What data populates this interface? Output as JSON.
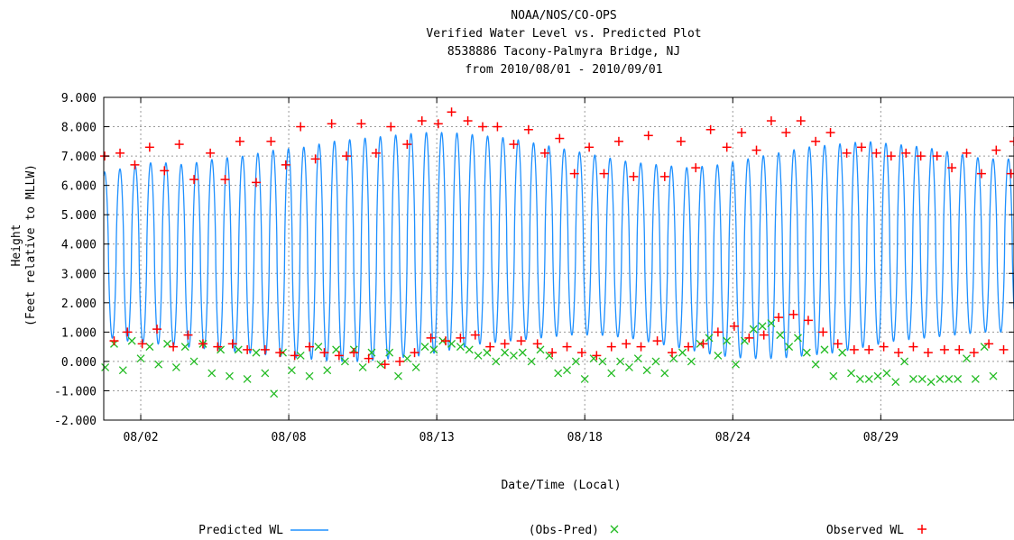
{
  "chart_data": {
    "type": "line",
    "title_lines": [
      "NOAA/NOS/CO-OPS",
      "Verified  Water Level vs. Predicted Plot",
      "8538886 Tacony-Palmyra Bridge, NJ",
      "from 2010/08/01 - 2010/09/01"
    ],
    "ylabel_lines": [
      "Height",
      "(Feet relative to MLLW)"
    ],
    "xlabel": "Date/Time (Local)",
    "ylim": [
      -2,
      9
    ],
    "y_ticks": [
      "9.000",
      "8.000",
      "7.000",
      "6.000",
      "5.000",
      "4.000",
      "3.000",
      "2.000",
      "1.000",
      "0.000",
      "-1.000",
      "-2.000"
    ],
    "y_tick_values": [
      9,
      8,
      7,
      6,
      5,
      4,
      3,
      2,
      1,
      0,
      -1,
      -2
    ],
    "x_range_days": [
      0.25,
      31.0
    ],
    "x_ticks": [
      "08/02",
      "08/08",
      "08/13",
      "08/18",
      "08/24",
      "08/29"
    ],
    "x_tick_days": [
      1.5,
      6.5,
      11.5,
      16.5,
      21.5,
      26.5
    ],
    "grid": true,
    "series": [
      {
        "name": "Predicted WL",
        "style": "line",
        "color": "#1e90ff",
        "tidal_period_hours": 12.42,
        "high_values": [
          6.4,
          6.6,
          6.8,
          6.7,
          6.9,
          7.0,
          7.2,
          7.3,
          7.5,
          7.6,
          7.7,
          7.8,
          7.8,
          7.7,
          7.6,
          7.4,
          7.2,
          7.0,
          6.8,
          6.7,
          6.6,
          6.7,
          6.9,
          7.1,
          7.3,
          7.4,
          7.5,
          7.4,
          7.3,
          7.1,
          6.9
        ],
        "low_values": [
          0.9,
          0.7,
          0.6,
          0.5,
          0.4,
          0.3,
          0.2,
          0.1,
          0.0,
          0.0,
          0.1,
          0.2,
          0.4,
          0.6,
          0.7,
          0.8,
          0.9,
          0.9,
          0.8,
          0.6,
          0.4,
          0.2,
          0.1,
          0.1,
          0.2,
          0.3,
          0.5,
          0.7,
          0.8,
          0.9,
          1.0
        ]
      },
      {
        "name": "(Obs-Pred)",
        "style": "marker-x",
        "color": "#22bb22",
        "points": [
          [
            0.3,
            -0.2
          ],
          [
            0.6,
            0.6
          ],
          [
            0.9,
            -0.3
          ],
          [
            1.2,
            0.7
          ],
          [
            1.5,
            0.1
          ],
          [
            1.8,
            0.5
          ],
          [
            2.1,
            -0.1
          ],
          [
            2.4,
            0.6
          ],
          [
            2.7,
            -0.2
          ],
          [
            3.0,
            0.5
          ],
          [
            3.3,
            0.0
          ],
          [
            3.6,
            0.6
          ],
          [
            3.9,
            -0.4
          ],
          [
            4.2,
            0.4
          ],
          [
            4.5,
            -0.5
          ],
          [
            4.8,
            0.4
          ],
          [
            5.1,
            -0.6
          ],
          [
            5.4,
            0.3
          ],
          [
            5.7,
            -0.4
          ],
          [
            6.0,
            -1.1
          ],
          [
            6.3,
            0.3
          ],
          [
            6.6,
            -0.3
          ],
          [
            6.9,
            0.2
          ],
          [
            7.2,
            -0.5
          ],
          [
            7.5,
            0.5
          ],
          [
            7.8,
            -0.3
          ],
          [
            8.1,
            0.4
          ],
          [
            8.4,
            0.0
          ],
          [
            8.7,
            0.4
          ],
          [
            9.0,
            -0.2
          ],
          [
            9.3,
            0.3
          ],
          [
            9.6,
            -0.1
          ],
          [
            9.9,
            0.3
          ],
          [
            10.2,
            -0.5
          ],
          [
            10.5,
            0.1
          ],
          [
            10.8,
            -0.2
          ],
          [
            11.1,
            0.5
          ],
          [
            11.4,
            0.4
          ],
          [
            11.7,
            0.7
          ],
          [
            12.0,
            0.6
          ],
          [
            12.3,
            0.5
          ],
          [
            12.6,
            0.4
          ],
          [
            12.9,
            0.2
          ],
          [
            13.2,
            0.3
          ],
          [
            13.5,
            0.0
          ],
          [
            13.8,
            0.3
          ],
          [
            14.1,
            0.2
          ],
          [
            14.4,
            0.3
          ],
          [
            14.7,
            0.0
          ],
          [
            15.0,
            0.4
          ],
          [
            15.3,
            0.2
          ],
          [
            15.6,
            -0.4
          ],
          [
            15.9,
            -0.3
          ],
          [
            16.2,
            0.0
          ],
          [
            16.5,
            -0.6
          ],
          [
            16.8,
            0.1
          ],
          [
            17.1,
            0.0
          ],
          [
            17.4,
            -0.4
          ],
          [
            17.7,
            0.0
          ],
          [
            18.0,
            -0.2
          ],
          [
            18.3,
            0.1
          ],
          [
            18.6,
            -0.3
          ],
          [
            18.9,
            0.0
          ],
          [
            19.2,
            -0.4
          ],
          [
            19.5,
            0.1
          ],
          [
            19.8,
            0.3
          ],
          [
            20.1,
            0.0
          ],
          [
            20.4,
            0.6
          ],
          [
            20.7,
            0.8
          ],
          [
            21.0,
            0.2
          ],
          [
            21.3,
            0.7
          ],
          [
            21.6,
            -0.1
          ],
          [
            21.9,
            0.7
          ],
          [
            22.2,
            1.1
          ],
          [
            22.5,
            1.2
          ],
          [
            22.8,
            1.3
          ],
          [
            23.1,
            0.9
          ],
          [
            23.4,
            0.5
          ],
          [
            23.7,
            0.8
          ],
          [
            24.0,
            0.3
          ],
          [
            24.3,
            -0.1
          ],
          [
            24.6,
            0.4
          ],
          [
            24.9,
            -0.5
          ],
          [
            25.2,
            0.3
          ],
          [
            25.5,
            -0.4
          ],
          [
            25.8,
            -0.6
          ],
          [
            26.1,
            -0.6
          ],
          [
            26.4,
            -0.5
          ],
          [
            26.7,
            -0.4
          ],
          [
            27.0,
            -0.7
          ],
          [
            27.3,
            0.0
          ],
          [
            27.6,
            -0.6
          ],
          [
            27.9,
            -0.6
          ],
          [
            28.2,
            -0.7
          ],
          [
            28.5,
            -0.6
          ],
          [
            28.8,
            -0.6
          ],
          [
            29.1,
            -0.6
          ],
          [
            29.4,
            0.1
          ],
          [
            29.7,
            -0.6
          ],
          [
            30.0,
            0.5
          ],
          [
            30.3,
            -0.5
          ]
        ]
      },
      {
        "name": "Observed WL",
        "style": "marker-plus",
        "color": "#ff0000",
        "points": [
          [
            0.28,
            7.0
          ],
          [
            0.6,
            0.7
          ],
          [
            0.8,
            7.1
          ],
          [
            1.05,
            1.0
          ],
          [
            1.3,
            6.7
          ],
          [
            1.55,
            0.6
          ],
          [
            1.8,
            7.3
          ],
          [
            2.05,
            1.1
          ],
          [
            2.3,
            6.5
          ],
          [
            2.6,
            0.5
          ],
          [
            2.8,
            7.4
          ],
          [
            3.1,
            0.9
          ],
          [
            3.3,
            6.2
          ],
          [
            3.6,
            0.6
          ],
          [
            3.85,
            7.1
          ],
          [
            4.1,
            0.5
          ],
          [
            4.35,
            6.2
          ],
          [
            4.6,
            0.6
          ],
          [
            4.85,
            7.5
          ],
          [
            5.1,
            0.4
          ],
          [
            5.4,
            6.1
          ],
          [
            5.7,
            0.4
          ],
          [
            5.9,
            7.5
          ],
          [
            6.2,
            0.3
          ],
          [
            6.4,
            6.7
          ],
          [
            6.7,
            0.2
          ],
          [
            6.9,
            8.0
          ],
          [
            7.2,
            0.5
          ],
          [
            7.4,
            6.9
          ],
          [
            7.7,
            0.3
          ],
          [
            7.95,
            8.1
          ],
          [
            8.2,
            0.2
          ],
          [
            8.45,
            7.0
          ],
          [
            8.7,
            0.3
          ],
          [
            8.95,
            8.1
          ],
          [
            9.2,
            0.1
          ],
          [
            9.45,
            7.1
          ],
          [
            9.75,
            -0.1
          ],
          [
            9.95,
            8.0
          ],
          [
            10.25,
            0.0
          ],
          [
            10.5,
            7.4
          ],
          [
            10.75,
            0.3
          ],
          [
            11.0,
            8.2
          ],
          [
            11.3,
            0.8
          ],
          [
            11.55,
            8.1
          ],
          [
            11.8,
            0.7
          ],
          [
            12.0,
            8.5
          ],
          [
            12.3,
            0.8
          ],
          [
            12.55,
            8.2
          ],
          [
            12.8,
            0.9
          ],
          [
            13.05,
            8.0
          ],
          [
            13.3,
            0.5
          ],
          [
            13.55,
            8.0
          ],
          [
            13.8,
            0.6
          ],
          [
            14.1,
            7.4
          ],
          [
            14.35,
            0.7
          ],
          [
            14.6,
            7.9
          ],
          [
            14.9,
            0.6
          ],
          [
            15.15,
            7.1
          ],
          [
            15.4,
            0.3
          ],
          [
            15.65,
            7.6
          ],
          [
            15.9,
            0.5
          ],
          [
            16.15,
            6.4
          ],
          [
            16.4,
            0.3
          ],
          [
            16.65,
            7.3
          ],
          [
            16.9,
            0.2
          ],
          [
            17.15,
            6.4
          ],
          [
            17.4,
            0.5
          ],
          [
            17.65,
            7.5
          ],
          [
            17.9,
            0.6
          ],
          [
            18.15,
            6.3
          ],
          [
            18.4,
            0.5
          ],
          [
            18.65,
            7.7
          ],
          [
            18.95,
            0.7
          ],
          [
            19.2,
            6.3
          ],
          [
            19.45,
            0.3
          ],
          [
            19.75,
            7.5
          ],
          [
            20.0,
            0.5
          ],
          [
            20.25,
            6.6
          ],
          [
            20.5,
            0.6
          ],
          [
            20.75,
            7.9
          ],
          [
            21.0,
            1.0
          ],
          [
            21.3,
            7.3
          ],
          [
            21.55,
            1.2
          ],
          [
            21.8,
            7.8
          ],
          [
            22.05,
            0.8
          ],
          [
            22.3,
            7.2
          ],
          [
            22.55,
            0.9
          ],
          [
            22.8,
            8.2
          ],
          [
            23.05,
            1.5
          ],
          [
            23.3,
            7.8
          ],
          [
            23.55,
            1.6
          ],
          [
            23.8,
            8.2
          ],
          [
            24.05,
            1.4
          ],
          [
            24.3,
            7.5
          ],
          [
            24.55,
            1.0
          ],
          [
            24.8,
            7.8
          ],
          [
            25.05,
            0.6
          ],
          [
            25.35,
            7.1
          ],
          [
            25.6,
            0.4
          ],
          [
            25.85,
            7.3
          ],
          [
            26.1,
            0.4
          ],
          [
            26.35,
            7.1
          ],
          [
            26.6,
            0.5
          ],
          [
            26.85,
            7.0
          ],
          [
            27.1,
            0.3
          ],
          [
            27.35,
            7.1
          ],
          [
            27.6,
            0.5
          ],
          [
            27.85,
            7.0
          ],
          [
            28.1,
            0.3
          ],
          [
            28.4,
            7.0
          ],
          [
            28.65,
            0.4
          ],
          [
            28.9,
            6.6
          ],
          [
            29.15,
            0.4
          ],
          [
            29.4,
            7.1
          ],
          [
            29.65,
            0.3
          ],
          [
            29.9,
            6.4
          ],
          [
            30.15,
            0.6
          ],
          [
            30.4,
            7.2
          ],
          [
            30.65,
            0.4
          ],
          [
            30.9,
            6.4
          ],
          [
            31.0,
            7.5
          ]
        ]
      }
    ],
    "legend": [
      {
        "label": "Predicted WL",
        "marker": "line",
        "color": "#1e90ff"
      },
      {
        "label": "(Obs-Pred)",
        "marker": "x",
        "color": "#22bb22"
      },
      {
        "label": "Observed WL",
        "marker": "plus",
        "color": "#ff0000"
      }
    ],
    "legend_placement": "bottom"
  }
}
